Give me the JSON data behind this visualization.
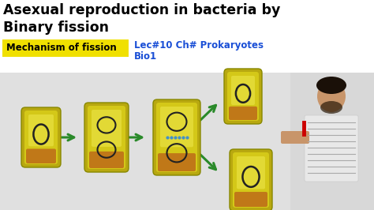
{
  "title_line1": "Asexual reproduction in bacteria by",
  "title_line2": "Binary fission",
  "subtitle_yellow": "Mechanism of fission",
  "subtitle_blue_line1": "Lec#10 Ch# Prokaryotes",
  "subtitle_blue_line2": "Bio1",
  "top_bg_color": "#ffffff",
  "bottom_bg_color": "#e8e8e8",
  "title_color": "#000000",
  "subtitle_yellow_bg": "#f0e000",
  "subtitle_blue_color": "#1a4fd6",
  "arrow_color": "#2a8a2a",
  "bacteria_outer": "#b8a810",
  "bacteria_body": "#d4c818",
  "bacteria_highlight": "#e8e040",
  "bacteria_base": "#c07818",
  "nucleus_color": "#222222",
  "dots_color": "#4090cc",
  "fig_width": 4.74,
  "fig_height": 2.66,
  "dpi": 100
}
